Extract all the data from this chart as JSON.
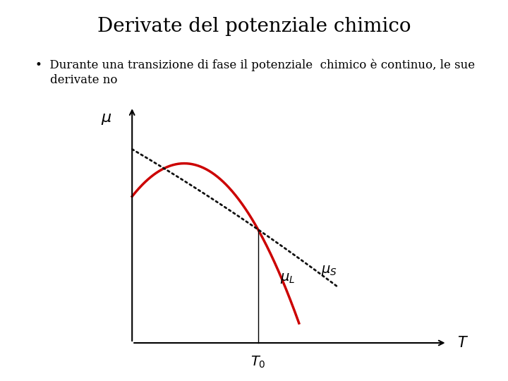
{
  "title": "Derivate del potenziale chimico",
  "bullet_line1": "•  Durante una transizione di fase il potenziale  chimico è continuo, le sue",
  "bullet_line2": "    derivate no",
  "background_color": "#ffffff",
  "title_fontsize": 20,
  "text_fontsize": 12,
  "curve_red_color": "#cc0000",
  "curve_black_color": "#111111",
  "axis_color": "#000000"
}
